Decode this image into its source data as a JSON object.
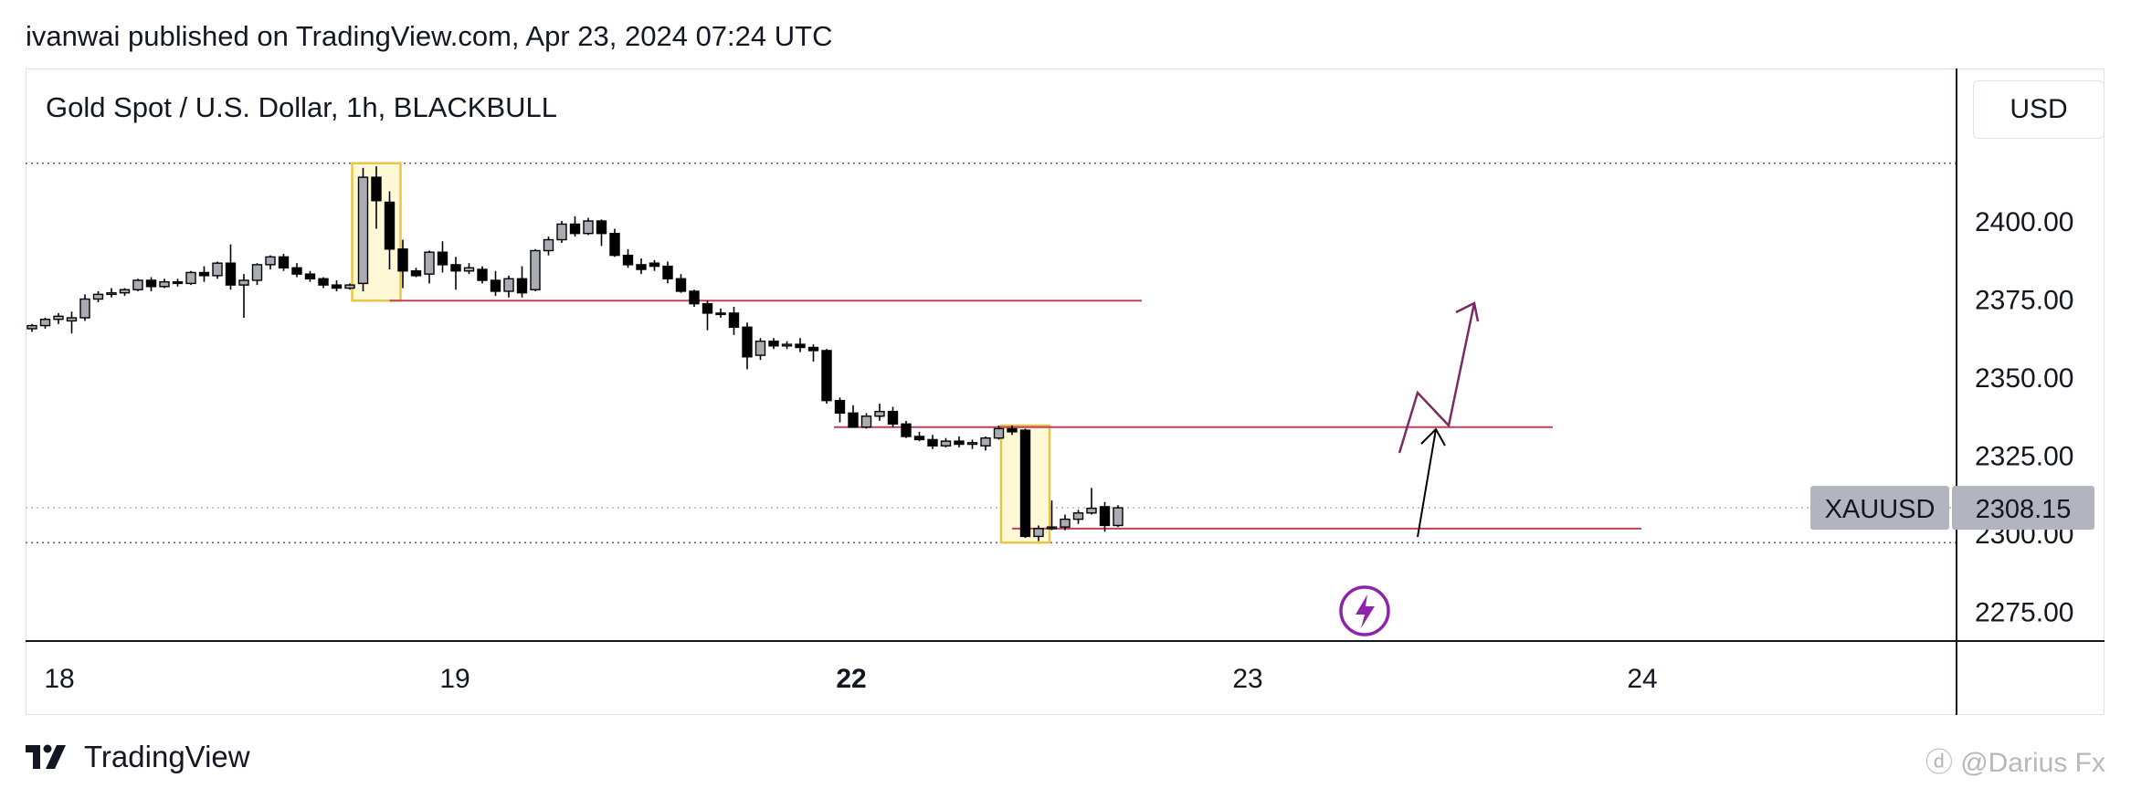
{
  "header": {
    "published": "ivanwai published on TradingView.com, Apr 23, 2024 07:24 UTC"
  },
  "chart_title": "Gold Spot / U.S. Dollar, 1h, BLACKBULL",
  "currency_label": "USD",
  "footer": {
    "brand": "TradingView",
    "watermark": "@Darius Fx"
  },
  "chart_data": {
    "type": "candlestick",
    "symbol": "XAUUSD",
    "last_price": "2308.15",
    "y_ticks": [
      "2400.00",
      "2375.00",
      "2350.00",
      "2325.00",
      "2300.00",
      "2275.00"
    ],
    "y_tick_values": [
      2400,
      2375,
      2350,
      2325,
      2300,
      2275
    ],
    "x_ticks": [
      {
        "label": "18",
        "day": 18,
        "bold": false
      },
      {
        "label": "19",
        "day": 19,
        "bold": false
      },
      {
        "label": "22",
        "day": 22,
        "bold": true
      },
      {
        "label": "23",
        "day": 23,
        "bold": false
      },
      {
        "label": "24",
        "day": 24,
        "bold": false
      }
    ],
    "candles": [
      [
        2365.5,
        2367.0,
        2364.5,
        2366.5
      ],
      [
        2366.5,
        2369.0,
        2365.5,
        2368.5
      ],
      [
        2368.5,
        2370.5,
        2367.0,
        2369.5
      ],
      [
        2368.0,
        2371.0,
        2364.0,
        2369.0
      ],
      [
        2369.0,
        2376.5,
        2368.0,
        2375.0
      ],
      [
        2375.0,
        2377.5,
        2374.0,
        2376.5
      ],
      [
        2376.5,
        2378.5,
        2375.5,
        2377.0
      ],
      [
        2377.0,
        2378.5,
        2376.0,
        2378.0
      ],
      [
        2378.0,
        2381.5,
        2377.5,
        2381.0
      ],
      [
        2381.0,
        2382.0,
        2377.5,
        2379.0
      ],
      [
        2379.0,
        2381.5,
        2378.5,
        2380.5
      ],
      [
        2380.5,
        2381.5,
        2379.0,
        2380.0
      ],
      [
        2380.0,
        2384.0,
        2379.5,
        2383.5
      ],
      [
        2383.5,
        2385.5,
        2380.5,
        2382.5
      ],
      [
        2382.5,
        2387.0,
        2381.5,
        2386.5
      ],
      [
        2386.5,
        2392.5,
        2378.0,
        2379.5
      ],
      [
        2379.5,
        2383.0,
        2369.0,
        2381.0
      ],
      [
        2381.0,
        2386.5,
        2379.5,
        2386.0
      ],
      [
        2386.0,
        2389.0,
        2384.5,
        2388.5
      ],
      [
        2388.5,
        2389.5,
        2384.0,
        2385.0
      ],
      [
        2385.0,
        2386.5,
        2382.0,
        2383.0
      ],
      [
        2383.0,
        2384.0,
        2380.5,
        2381.5
      ],
      [
        2381.5,
        2382.0,
        2378.5,
        2379.5
      ],
      [
        2379.5,
        2381.0,
        2377.5,
        2378.5
      ],
      [
        2378.5,
        2380.0,
        2378.0,
        2379.5
      ],
      [
        2380.0,
        2417.0,
        2377.5,
        2414.0
      ],
      [
        2414.0,
        2417.5,
        2397.5,
        2406.5
      ],
      [
        2406.0,
        2409.5,
        2384.5,
        2391.0
      ],
      [
        2391.0,
        2394.0,
        2378.5,
        2384.0
      ],
      [
        2384.0,
        2385.0,
        2382.0,
        2382.5
      ],
      [
        2383.0,
        2390.5,
        2380.0,
        2390.0
      ],
      [
        2390.0,
        2393.5,
        2383.5,
        2386.0
      ],
      [
        2386.0,
        2388.5,
        2378.0,
        2384.0
      ],
      [
        2384.0,
        2386.5,
        2383.0,
        2385.0
      ],
      [
        2384.5,
        2385.5,
        2380.0,
        2381.0
      ],
      [
        2381.0,
        2384.0,
        2376.0,
        2377.5
      ],
      [
        2377.5,
        2382.5,
        2375.5,
        2381.5
      ],
      [
        2381.5,
        2385.5,
        2375.5,
        2377.0
      ],
      [
        2378.0,
        2391.0,
        2377.5,
        2390.5
      ],
      [
        2390.5,
        2395.0,
        2389.0,
        2394.0
      ],
      [
        2394.0,
        2400.0,
        2393.0,
        2399.0
      ],
      [
        2399.0,
        2401.5,
        2395.0,
        2396.0
      ],
      [
        2396.0,
        2401.0,
        2395.5,
        2400.0
      ],
      [
        2400.0,
        2400.5,
        2392.0,
        2396.0
      ],
      [
        2396.0,
        2397.5,
        2388.5,
        2389.0
      ],
      [
        2389.0,
        2391.0,
        2385.0,
        2386.0
      ],
      [
        2386.0,
        2388.0,
        2383.0,
        2384.5
      ],
      [
        2386.5,
        2387.5,
        2384.0,
        2385.5
      ],
      [
        2385.5,
        2387.0,
        2380.0,
        2381.5
      ],
      [
        2381.5,
        2383.0,
        2377.0,
        2377.5
      ],
      [
        2377.5,
        2378.0,
        2372.5,
        2373.5
      ],
      [
        2373.5,
        2374.5,
        2365.0,
        2370.5
      ],
      [
        2370.5,
        2372.0,
        2369.0,
        2370.5
      ],
      [
        2370.5,
        2372.5,
        2363.5,
        2366.0
      ],
      [
        2366.0,
        2367.5,
        2352.5,
        2356.5
      ],
      [
        2357.0,
        2362.5,
        2355.5,
        2361.5
      ],
      [
        2361.5,
        2362.5,
        2359.0,
        2360.0
      ],
      [
        2360.0,
        2361.5,
        2359.0,
        2360.5
      ],
      [
        2360.5,
        2362.5,
        2358.0,
        2359.5
      ],
      [
        2359.5,
        2360.5,
        2355.0,
        2358.5
      ],
      [
        2358.5,
        2359.0,
        2341.5,
        2342.5
      ],
      [
        2342.5,
        2343.5,
        2335.5,
        2338.5
      ],
      [
        2338.5,
        2341.0,
        2334.0,
        2334.0
      ],
      [
        2334.0,
        2338.5,
        2333.5,
        2337.5
      ],
      [
        2337.5,
        2341.5,
        2336.0,
        2339.0
      ],
      [
        2339.0,
        2340.5,
        2334.0,
        2335.0
      ],
      [
        2335.0,
        2336.0,
        2330.5,
        2331.0
      ],
      [
        2331.0,
        2332.5,
        2329.5,
        2330.0
      ],
      [
        2330.0,
        2331.5,
        2327.0,
        2328.0
      ],
      [
        2328.0,
        2330.5,
        2327.5,
        2329.5
      ],
      [
        2329.5,
        2331.0,
        2327.5,
        2328.5
      ],
      [
        2328.5,
        2330.0,
        2327.0,
        2329.0
      ],
      [
        2328.0,
        2331.0,
        2326.5,
        2330.5
      ],
      [
        2330.5,
        2334.5,
        2330.0,
        2333.5
      ],
      [
        2333.5,
        2334.5,
        2331.5,
        2332.5
      ],
      [
        2333.0,
        2333.5,
        2298.5,
        2299.0
      ],
      [
        2299.0,
        2302.5,
        2297.5,
        2301.5
      ],
      [
        2301.5,
        2310.5,
        2301.0,
        2302.0
      ],
      [
        2302.0,
        2306.0,
        2301.0,
        2304.5
      ],
      [
        2304.5,
        2307.5,
        2303.0,
        2306.5
      ],
      [
        2306.5,
        2314.5,
        2306.0,
        2308.0
      ],
      [
        2308.5,
        2310.0,
        2300.5,
        2302.5
      ],
      [
        2302.5,
        2309.0,
        2302.0,
        2308.15
      ]
    ],
    "annotations": {
      "supply_lines": [
        2374.5,
        2334.0,
        2301.5
      ],
      "zones": [
        {
          "start_index": 25,
          "end_index": 27,
          "low": 2374.5,
          "high": 2418.5
        },
        {
          "start_index": 74,
          "end_index": 76,
          "low": 2297.0,
          "high": 2334.5
        }
      ],
      "dotted_levels": [
        2418.5,
        2308.15,
        2297.0
      ],
      "projection": [
        [
          2315.5,
          2330
        ],
        [
          2323.5,
          2345
        ],
        [
          2324.5,
          2334
        ],
        [
          2325.5,
          2377
        ]
      ]
    }
  }
}
